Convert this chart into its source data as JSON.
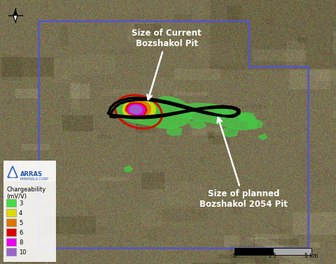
{
  "figsize": [
    4.8,
    3.78
  ],
  "dpi": 100,
  "bg_color": "#7a7355",
  "annotation1_text": "Size of Current\nBozshakol Pit",
  "annotation2_text": "Size of planned\nBozshakol 2054 Pit",
  "legend_colors": [
    "#44dd44",
    "#dddd00",
    "#dd7700",
    "#dd0000",
    "#ee00ee",
    "#9966cc"
  ],
  "legend_labels": [
    "3",
    "4",
    "5",
    "6",
    "8",
    "10"
  ],
  "legend_title1": "Chargeability",
  "legend_title2": "(mV/V)"
}
